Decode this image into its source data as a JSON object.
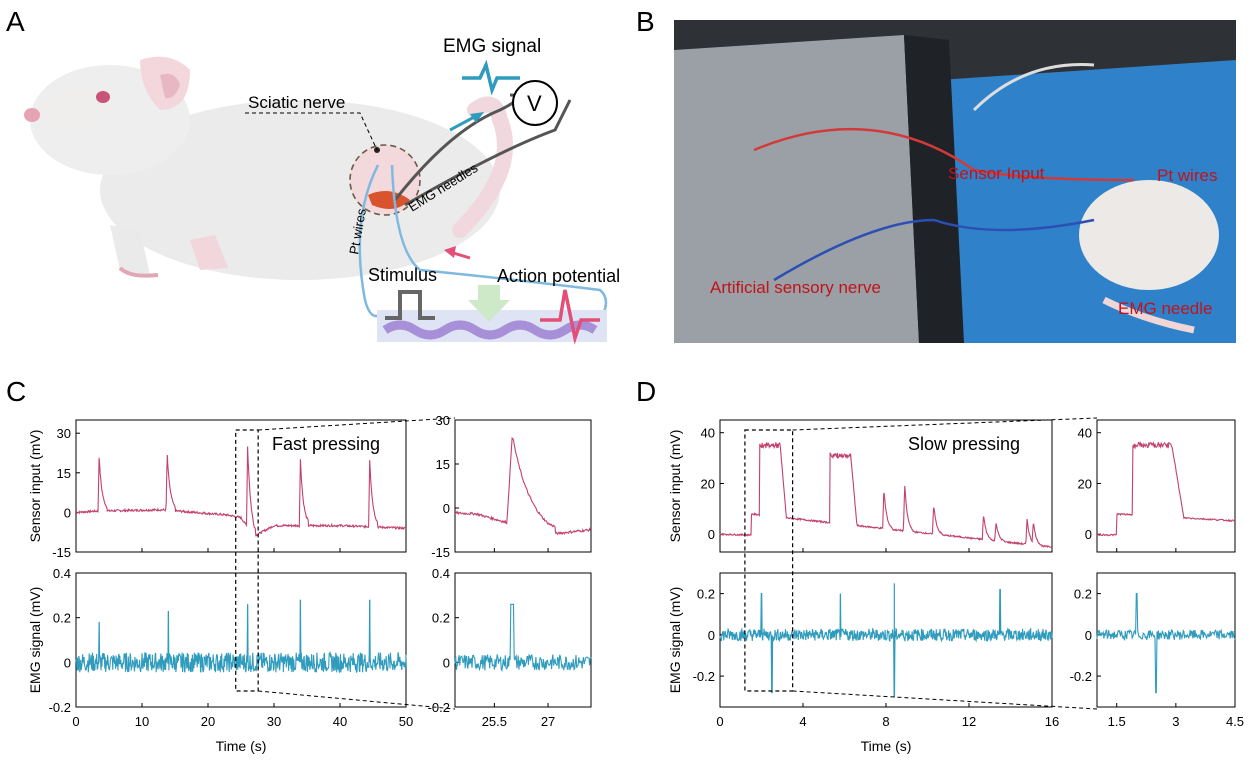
{
  "panels": {
    "a": "A",
    "b": "B",
    "c": "C",
    "d": "D"
  },
  "panel_a": {
    "emg_signal": "EMG signal",
    "v_label": "V",
    "sciatic_nerve": "Sciatic nerve",
    "emg_needles": "EMG needles",
    "pt_wires": "Pt wires",
    "stimulus": "Stimulus",
    "action_potential": "Action potential"
  },
  "panel_b": {
    "sensor_input": "Sensor Input",
    "pt_wires": "Pt wires",
    "artificial_sensory_nerve": "Artificial sensory nerve",
    "emg_needle": "EMG needle"
  },
  "colors": {
    "sensor": "#c2416e",
    "emg": "#2f9bbd",
    "annotation_red": "#c0141a"
  },
  "chart_data": [
    {
      "type": "line",
      "panel": "C",
      "annotation": "Fast pressing",
      "xlabel": "Time (s)",
      "xlim": [
        0,
        50
      ],
      "xticks": [
        0,
        10,
        20,
        30,
        40,
        50
      ],
      "main_sensor": {
        "ylabel": "Sensor input (mV)",
        "ylim": [
          -15,
          35
        ],
        "yticks": [
          30,
          15,
          0,
          -15
        ],
        "peaks": [
          {
            "x": 3.5,
            "y": 21
          },
          {
            "x": 13.8,
            "y": 23
          },
          {
            "x": 26.0,
            "y": 25
          },
          {
            "x": 34.0,
            "y": 20
          },
          {
            "x": 44.5,
            "y": 20
          }
        ],
        "baseline": [
          [
            0,
            0
          ],
          [
            3,
            0.5
          ],
          [
            13,
            1
          ],
          [
            23,
            -1
          ],
          [
            25,
            -2
          ],
          [
            27,
            -9
          ],
          [
            30,
            -5
          ],
          [
            40,
            -5
          ],
          [
            50,
            -6
          ]
        ]
      },
      "main_emg": {
        "ylabel": "EMG signal (mV)",
        "ylim": [
          -0.2,
          0.4
        ],
        "yticks": [
          0.4,
          0.2,
          0.0,
          -0.2
        ],
        "spikes": [
          {
            "x": 3.5,
            "y": 0.18
          },
          {
            "x": 14.0,
            "y": 0.23
          },
          {
            "x": 26.0,
            "y": 0.26
          },
          {
            "x": 34.0,
            "y": 0.28
          },
          {
            "x": 44.5,
            "y": 0.28
          }
        ]
      },
      "zoom_window": [
        24.2,
        27.6
      ],
      "zoom_xlim": [
        24.4,
        28.2
      ],
      "zoom_xticks": [
        25.5,
        27.0
      ],
      "zoom_sensor": {
        "ylim": [
          -15,
          30
        ],
        "yticks": [
          30,
          15,
          0,
          -15
        ]
      },
      "zoom_emg": {
        "ylim": [
          -0.2,
          0.4
        ],
        "yticks": [
          0.4,
          0.2,
          0.0,
          -0.2
        ]
      }
    },
    {
      "type": "line",
      "panel": "D",
      "annotation": "Slow pressing",
      "xlabel": "Time (s)",
      "xlim": [
        0,
        16
      ],
      "xticks": [
        0,
        4,
        8,
        12,
        16
      ],
      "main_sensor": {
        "ylabel": "Sensor input (mV)",
        "ylim": [
          -7,
          45
        ],
        "yticks": [
          40,
          20,
          0
        ],
        "plateaus": [
          {
            "start": 1.9,
            "end": 2.9,
            "y": 35
          },
          {
            "start": 5.3,
            "end": 6.3,
            "y": 31
          }
        ],
        "peaks": [
          {
            "x": 7.9,
            "y": 18
          },
          {
            "x": 8.9,
            "y": 20
          },
          {
            "x": 10.3,
            "y": 12
          },
          {
            "x": 12.7,
            "y": 8
          },
          {
            "x": 13.3,
            "y": 5
          },
          {
            "x": 14.8,
            "y": 6
          },
          {
            "x": 15.1,
            "y": 5
          }
        ]
      },
      "main_emg": {
        "ylabel": "EMG signal (mV)",
        "ylim": [
          -0.35,
          0.3
        ],
        "yticks": [
          0.2,
          0.0,
          -0.2
        ],
        "spikes": [
          {
            "x": 2.0,
            "y": 0.2
          },
          {
            "x": 2.5,
            "y": -0.28
          },
          {
            "x": 5.8,
            "y": 0.2
          },
          {
            "x": 8.4,
            "y": 0.25
          },
          {
            "x": 8.4,
            "y": -0.3
          },
          {
            "x": 13.5,
            "y": 0.22
          }
        ]
      },
      "zoom_window": [
        1.2,
        3.5
      ],
      "zoom_xlim": [
        1.0,
        4.5
      ],
      "zoom_xticks": [
        1.5,
        3.0,
        4.5
      ],
      "zoom_sensor": {
        "ylim": [
          -7,
          45
        ],
        "yticks": [
          40,
          20,
          0
        ]
      },
      "zoom_emg": {
        "ylim": [
          -0.35,
          0.3
        ],
        "yticks": [
          0.2,
          0.0,
          -0.2
        ]
      }
    }
  ]
}
